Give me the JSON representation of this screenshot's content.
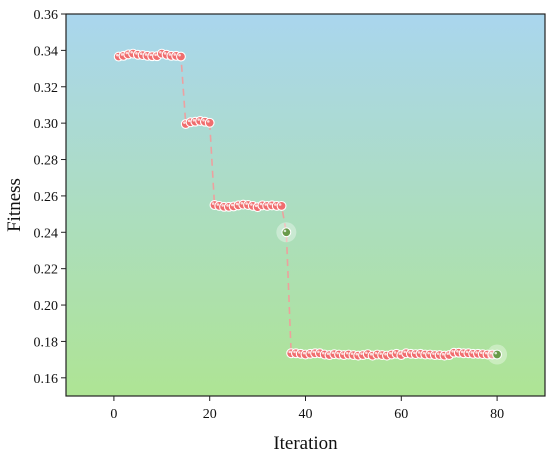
{
  "chart_data": {
    "type": "line",
    "title": "",
    "xlabel": "Iteration",
    "ylabel": "Fitness",
    "xlim": [
      -10,
      90
    ],
    "ylim": [
      0.15,
      0.36
    ],
    "xticks": [
      0,
      20,
      40,
      60,
      80
    ],
    "yticks": [
      0.16,
      0.18,
      0.2,
      0.22,
      0.24,
      0.26,
      0.28,
      0.3,
      0.32,
      0.34,
      0.36
    ],
    "ytick_labels": [
      "0.16",
      "0.18",
      "0.20",
      "0.22",
      "0.24",
      "0.26",
      "0.28",
      "0.30",
      "0.32",
      "0.34",
      "0.36"
    ],
    "grid": false,
    "legend": "none",
    "background_gradient": [
      "#aad6ee",
      "#aee494"
    ],
    "colors": {
      "marker_fill": "#f06d6e",
      "marker_stroke": "#ffffff",
      "highlight_marker": "#6a9a4a",
      "line": "#f49a9a"
    },
    "series": [
      {
        "x": [
          1,
          2,
          3,
          4,
          5,
          6,
          7,
          8,
          9,
          10,
          11,
          12,
          13,
          14,
          15,
          16,
          17,
          18,
          19,
          20,
          21,
          22,
          23,
          24,
          25,
          26,
          27,
          28,
          29,
          30,
          31,
          32,
          33,
          34,
          35,
          36,
          37,
          38,
          39,
          40,
          41,
          42,
          43,
          44,
          45,
          46,
          47,
          48,
          49,
          50,
          51,
          52,
          53,
          54,
          55,
          56,
          57,
          58,
          59,
          60,
          61,
          62,
          63,
          64,
          65,
          66,
          67,
          68,
          69,
          70,
          71,
          72,
          73,
          74,
          75,
          76,
          77,
          78,
          79,
          80
        ],
        "y": [
          0.3366,
          0.337,
          0.3378,
          0.3382,
          0.3376,
          0.3374,
          0.337,
          0.3368,
          0.3368,
          0.3382,
          0.3376,
          0.337,
          0.337,
          0.3366,
          0.2995,
          0.3005,
          0.3008,
          0.3012,
          0.3008,
          0.3002,
          0.255,
          0.2545,
          0.254,
          0.254,
          0.2542,
          0.2548,
          0.2552,
          0.255,
          0.2545,
          0.2538,
          0.2548,
          0.2545,
          0.2548,
          0.2545,
          0.2545,
          0.24,
          0.1735,
          0.1735,
          0.1732,
          0.1728,
          0.1732,
          0.1735,
          0.1735,
          0.1728,
          0.1725,
          0.173,
          0.1728,
          0.1725,
          0.1728,
          0.1725,
          0.1722,
          0.1725,
          0.173,
          0.1722,
          0.1728,
          0.1725,
          0.1722,
          0.1728,
          0.1732,
          0.1725,
          0.1735,
          0.1732,
          0.173,
          0.1732,
          0.1728,
          0.1728,
          0.1725,
          0.1725,
          0.1722,
          0.1725,
          0.1738,
          0.1738,
          0.1735,
          0.1735,
          0.1732,
          0.1732,
          0.173,
          0.1728,
          0.1728,
          0.1728
        ],
        "highlight_points": [
          36,
          80
        ]
      }
    ]
  }
}
